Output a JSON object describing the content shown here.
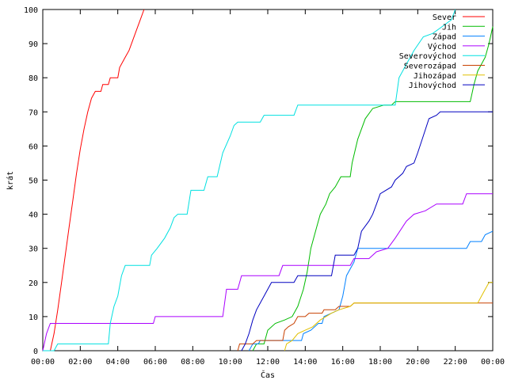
{
  "chart_data": {
    "type": "line",
    "title": "",
    "xlabel": "Čas",
    "ylabel": "krát",
    "xlim": [
      0,
      24
    ],
    "ylim": [
      0,
      100
    ],
    "x_ticks": [
      {
        "value": 0,
        "label": "00:00"
      },
      {
        "value": 2,
        "label": "02:00"
      },
      {
        "value": 4,
        "label": "04:00"
      },
      {
        "value": 6,
        "label": "06:00"
      },
      {
        "value": 8,
        "label": "08:00"
      },
      {
        "value": 10,
        "label": "10:00"
      },
      {
        "value": 12,
        "label": "12:00"
      },
      {
        "value": 14,
        "label": "14:00"
      },
      {
        "value": 16,
        "label": "16:00"
      },
      {
        "value": 18,
        "label": "18:00"
      },
      {
        "value": 20,
        "label": "20:00"
      },
      {
        "value": 22,
        "label": "22:00"
      },
      {
        "value": 24,
        "label": "00:00"
      }
    ],
    "y_ticks": [
      {
        "value": 0,
        "label": "0"
      },
      {
        "value": 10,
        "label": "10"
      },
      {
        "value": 20,
        "label": "20"
      },
      {
        "value": 30,
        "label": "30"
      },
      {
        "value": 40,
        "label": "40"
      },
      {
        "value": 50,
        "label": "50"
      },
      {
        "value": 60,
        "label": "60"
      },
      {
        "value": 70,
        "label": "70"
      },
      {
        "value": 80,
        "label": "80"
      },
      {
        "value": 90,
        "label": "90"
      },
      {
        "value": 100,
        "label": "100"
      }
    ],
    "grid": false,
    "legend_position": "top-right",
    "series": [
      {
        "name": "Sever",
        "color": "#ff0000",
        "points": [
          [
            0.4,
            0
          ],
          [
            0.6,
            5
          ],
          [
            0.8,
            12
          ],
          [
            1.0,
            20
          ],
          [
            1.2,
            28
          ],
          [
            1.4,
            36
          ],
          [
            1.6,
            44
          ],
          [
            1.8,
            52
          ],
          [
            2.0,
            59
          ],
          [
            2.2,
            65
          ],
          [
            2.4,
            70
          ],
          [
            2.6,
            74
          ],
          [
            2.8,
            76
          ],
          [
            3.1,
            76
          ],
          [
            3.2,
            78
          ],
          [
            3.5,
            78
          ],
          [
            3.6,
            80
          ],
          [
            4.0,
            80
          ],
          [
            4.1,
            83
          ],
          [
            4.4,
            86
          ],
          [
            4.6,
            88
          ],
          [
            4.8,
            91
          ],
          [
            5.0,
            94
          ],
          [
            5.2,
            97
          ],
          [
            5.4,
            100
          ]
        ]
      },
      {
        "name": "Jih",
        "color": "#00bb00",
        "points": [
          [
            11.2,
            0
          ],
          [
            11.4,
            2
          ],
          [
            11.8,
            2
          ],
          [
            12.0,
            6
          ],
          [
            12.4,
            8
          ],
          [
            12.9,
            9
          ],
          [
            13.3,
            10
          ],
          [
            13.6,
            13
          ],
          [
            13.9,
            18
          ],
          [
            14.1,
            23
          ],
          [
            14.3,
            30
          ],
          [
            14.6,
            36
          ],
          [
            14.8,
            40
          ],
          [
            15.1,
            43
          ],
          [
            15.3,
            46
          ],
          [
            15.6,
            48
          ],
          [
            15.9,
            51
          ],
          [
            16.4,
            51
          ],
          [
            16.5,
            55
          ],
          [
            16.8,
            62
          ],
          [
            17.2,
            68
          ],
          [
            17.6,
            71
          ],
          [
            18.2,
            72
          ],
          [
            18.6,
            72
          ],
          [
            18.8,
            73
          ],
          [
            22.8,
            73
          ],
          [
            23.0,
            78
          ],
          [
            23.2,
            82
          ],
          [
            23.4,
            84
          ],
          [
            23.6,
            86
          ],
          [
            23.8,
            90
          ],
          [
            24.0,
            95
          ]
        ]
      },
      {
        "name": "Západ",
        "color": "#0080ff",
        "points": [
          [
            11.0,
            0
          ],
          [
            11.2,
            2
          ],
          [
            11.5,
            2
          ],
          [
            11.6,
            3
          ],
          [
            13.8,
            3
          ],
          [
            13.9,
            5
          ],
          [
            14.3,
            6
          ],
          [
            14.7,
            8
          ],
          [
            14.9,
            8
          ],
          [
            15.0,
            10
          ],
          [
            15.4,
            11
          ],
          [
            15.8,
            12
          ],
          [
            16.0,
            16
          ],
          [
            16.2,
            22
          ],
          [
            16.6,
            26
          ],
          [
            16.8,
            30
          ],
          [
            22.6,
            30
          ],
          [
            22.8,
            32
          ],
          [
            23.4,
            32
          ],
          [
            23.6,
            34
          ],
          [
            24.0,
            35
          ]
        ]
      },
      {
        "name": "Východ",
        "color": "#aa00ff",
        "points": [
          [
            0.0,
            0
          ],
          [
            0.2,
            5
          ],
          [
            0.4,
            8
          ],
          [
            5.9,
            8
          ],
          [
            6.0,
            10
          ],
          [
            9.6,
            10
          ],
          [
            9.8,
            18
          ],
          [
            10.4,
            18
          ],
          [
            10.6,
            22
          ],
          [
            12.6,
            22
          ],
          [
            12.8,
            25
          ],
          [
            16.4,
            25
          ],
          [
            16.6,
            27
          ],
          [
            17.4,
            27
          ],
          [
            17.8,
            29
          ],
          [
            18.4,
            30
          ],
          [
            18.8,
            33
          ],
          [
            19.4,
            38
          ],
          [
            19.8,
            40
          ],
          [
            20.4,
            41
          ],
          [
            21.0,
            43
          ],
          [
            22.4,
            43
          ],
          [
            22.6,
            46
          ],
          [
            24.0,
            46
          ]
        ]
      },
      {
        "name": "Severovýchod",
        "color": "#00e0e0",
        "points": [
          [
            0.0,
            0
          ],
          [
            0.6,
            0
          ],
          [
            0.8,
            2
          ],
          [
            3.5,
            2
          ],
          [
            3.6,
            8
          ],
          [
            3.8,
            13
          ],
          [
            4.0,
            16
          ],
          [
            4.2,
            22
          ],
          [
            4.4,
            25
          ],
          [
            5.7,
            25
          ],
          [
            5.8,
            28
          ],
          [
            6.1,
            30
          ],
          [
            6.5,
            33
          ],
          [
            6.8,
            36
          ],
          [
            7.0,
            39
          ],
          [
            7.2,
            40
          ],
          [
            7.7,
            40
          ],
          [
            7.9,
            47
          ],
          [
            8.6,
            47
          ],
          [
            8.8,
            51
          ],
          [
            9.3,
            51
          ],
          [
            9.6,
            58
          ],
          [
            10.0,
            63
          ],
          [
            10.2,
            66
          ],
          [
            10.4,
            67
          ],
          [
            11.6,
            67
          ],
          [
            11.8,
            69
          ],
          [
            13.4,
            69
          ],
          [
            13.6,
            72
          ],
          [
            18.8,
            72
          ],
          [
            19.0,
            80
          ],
          [
            19.4,
            84
          ],
          [
            19.8,
            88
          ],
          [
            20.3,
            92
          ],
          [
            20.8,
            93
          ],
          [
            21.3,
            95
          ],
          [
            21.8,
            97
          ],
          [
            22.0,
            100
          ]
        ]
      },
      {
        "name": "Severozápad",
        "color": "#c84000",
        "points": [
          [
            10.4,
            0
          ],
          [
            10.5,
            2
          ],
          [
            11.2,
            2
          ],
          [
            11.4,
            3
          ],
          [
            12.8,
            3
          ],
          [
            12.9,
            6
          ],
          [
            13.1,
            7
          ],
          [
            13.4,
            8
          ],
          [
            13.6,
            10
          ],
          [
            14.0,
            10
          ],
          [
            14.2,
            11
          ],
          [
            14.9,
            11
          ],
          [
            15.0,
            12
          ],
          [
            15.6,
            12
          ],
          [
            15.8,
            13
          ],
          [
            16.4,
            13
          ],
          [
            16.6,
            14
          ],
          [
            24.0,
            14
          ]
        ]
      },
      {
        "name": "Jihozápad",
        "color": "#e0c000",
        "points": [
          [
            12.9,
            0
          ],
          [
            13.0,
            2
          ],
          [
            13.3,
            3
          ],
          [
            13.6,
            5
          ],
          [
            14.0,
            6
          ],
          [
            14.4,
            7
          ],
          [
            14.8,
            9
          ],
          [
            15.1,
            10
          ],
          [
            15.4,
            11
          ],
          [
            15.8,
            12
          ],
          [
            16.4,
            13
          ],
          [
            16.6,
            14
          ],
          [
            23.2,
            14
          ],
          [
            23.4,
            16
          ],
          [
            23.6,
            18
          ],
          [
            23.8,
            20
          ],
          [
            24.0,
            20
          ]
        ]
      },
      {
        "name": "Jihovýchod",
        "color": "#0000c0",
        "points": [
          [
            10.6,
            0
          ],
          [
            10.8,
            2
          ],
          [
            11.0,
            5
          ],
          [
            11.2,
            9
          ],
          [
            11.4,
            12
          ],
          [
            11.6,
            14
          ],
          [
            11.8,
            16
          ],
          [
            12.0,
            18
          ],
          [
            12.2,
            20
          ],
          [
            13.4,
            20
          ],
          [
            13.6,
            22
          ],
          [
            15.4,
            22
          ],
          [
            15.6,
            28
          ],
          [
            16.6,
            28
          ],
          [
            16.8,
            30
          ],
          [
            17.0,
            35
          ],
          [
            17.4,
            38
          ],
          [
            17.6,
            40
          ],
          [
            17.8,
            43
          ],
          [
            18.0,
            46
          ],
          [
            18.6,
            48
          ],
          [
            18.8,
            50
          ],
          [
            19.2,
            52
          ],
          [
            19.4,
            54
          ],
          [
            19.8,
            55
          ],
          [
            20.0,
            58
          ],
          [
            20.3,
            63
          ],
          [
            20.6,
            68
          ],
          [
            21.0,
            69
          ],
          [
            21.2,
            70
          ],
          [
            24.0,
            70
          ]
        ]
      }
    ]
  }
}
